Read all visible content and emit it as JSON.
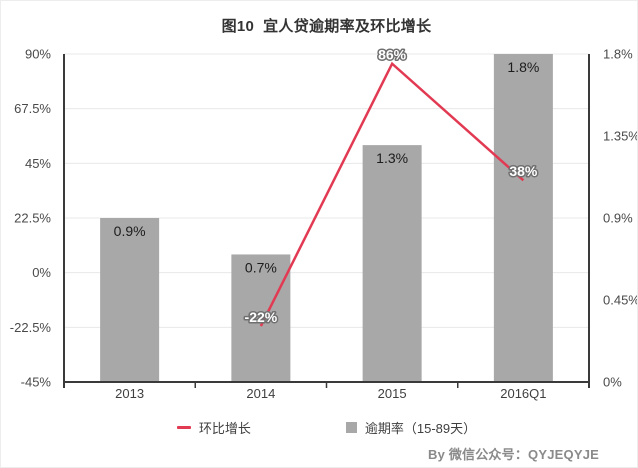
{
  "title": "图10  宜人贷逾期率及环比增长",
  "byline": "By 微信公众号：QYJEQYJE",
  "chart_data": {
    "type": "bar+line",
    "title": "图10 宜人贷逾期率及环比增长",
    "categories": [
      "2013",
      "2014",
      "2015",
      "2016Q1"
    ],
    "series": [
      {
        "name": "逾期率（15-89天）",
        "type": "bar",
        "axis": "right",
        "color": "#a8a8a8",
        "values": [
          0.9,
          0.7,
          1.3,
          1.8
        ],
        "labels": [
          "0.9%",
          "0.7%",
          "1.3%",
          "1.8%"
        ]
      },
      {
        "name": "环比增长",
        "type": "line",
        "axis": "left",
        "color": "#e13a52",
        "values": [
          null,
          -22,
          86,
          38
        ],
        "labels": [
          null,
          "-22%",
          "86%",
          "38%"
        ]
      }
    ],
    "left_axis": {
      "min": -45,
      "max": 90,
      "ticks": [
        "90%",
        "67.5%",
        "45%",
        "22.5%",
        "0%",
        "-22.5%",
        "-45%"
      ]
    },
    "right_axis": {
      "min": 0,
      "max": 1.8,
      "ticks": [
        "1.8%",
        "1.35%",
        "0.9%",
        "0.45%",
        "0%"
      ]
    },
    "grid": true,
    "legend_position": "bottom",
    "legend": {
      "items": [
        {
          "label": "环比增长",
          "marker": "line-dash",
          "color": "#e13a52"
        },
        {
          "label": "逾期率（15-89天）",
          "marker": "square",
          "color": "#a8a8a8"
        }
      ]
    },
    "colors": {
      "grid": "#e8e8e8",
      "axis_frame": "#3a3a3a",
      "bar_label": "#1c1c1c",
      "data_label_fill": "#ffffff",
      "data_label_outline": "#6f6f6f"
    }
  }
}
